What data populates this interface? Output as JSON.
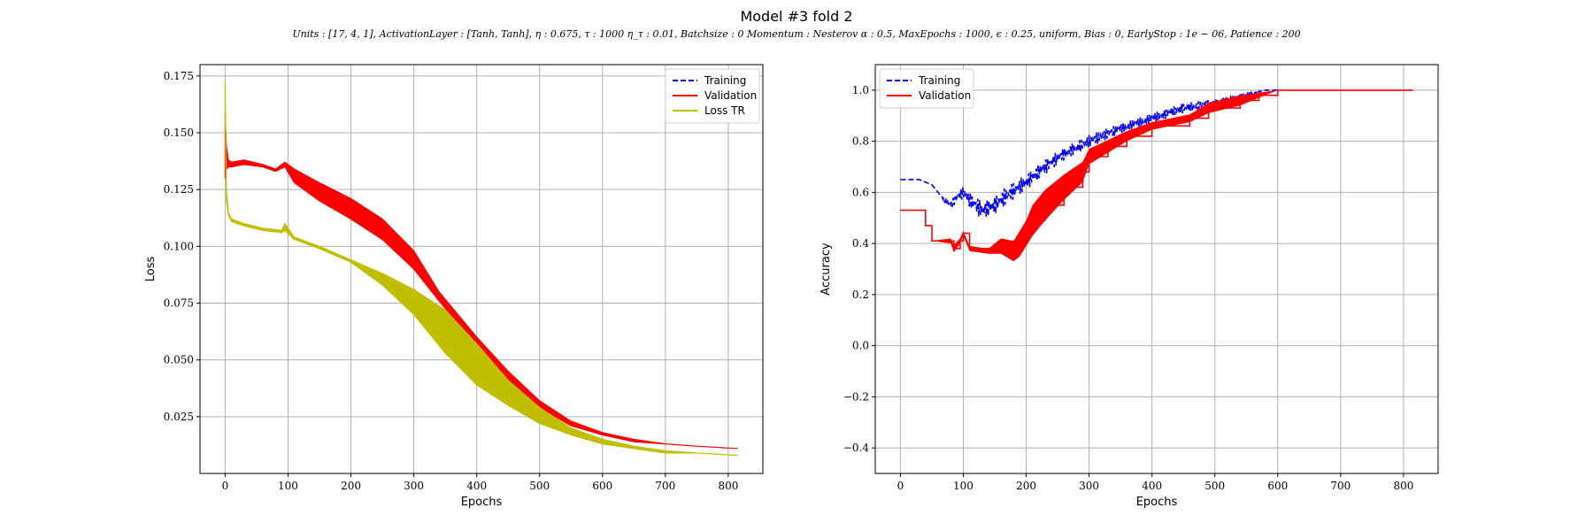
{
  "figure": {
    "title": "Model #3 fold 2",
    "subtitle": "Units : [17, 4, 1], ActivationLayer : [Tanh, Tanh], η : 0.675, τ : 1000 η_τ : 0.01, Batchsize : 0 Momentum : Nesterov α : 0.5, MaxEpochs : 1000, ϵ : 0.25, uniform, Bias : 0, EarlyStop : 1e − 06, Patience : 200"
  },
  "colors": {
    "training": "#0000ff",
    "validation": "#ff0000",
    "loss_tr": "#bfbf00",
    "grid": "#b0b0b0"
  },
  "chart_data": [
    {
      "type": "line",
      "xlabel": "Epochs",
      "ylabel": "Loss",
      "xlim": [
        -40,
        855
      ],
      "ylim": [
        -0.0,
        0.18
      ],
      "xticks": [
        0,
        100,
        200,
        300,
        400,
        500,
        600,
        700,
        800
      ],
      "yticks": [
        0.025,
        0.05,
        0.075,
        0.1,
        0.125,
        0.15,
        0.175
      ],
      "ytick_labels": [
        "0.025",
        "0.050",
        "0.075",
        "0.100",
        "0.125",
        "0.150",
        "0.175"
      ],
      "grid": true,
      "legend_position": "top-right",
      "legend": [
        {
          "label": "Training",
          "style": "dashed",
          "color": "#0000ff"
        },
        {
          "label": "Validation",
          "style": "solid",
          "color": "#ff0000"
        },
        {
          "label": "Loss TR",
          "style": "solid",
          "color": "#bfbf00"
        }
      ],
      "series": [
        {
          "name": "Validation",
          "color": "#ff0000",
          "band": true,
          "x": [
            0,
            2,
            5,
            10,
            30,
            60,
            80,
            95,
            110,
            150,
            200,
            250,
            300,
            340,
            400,
            450,
            500,
            550,
            600,
            650,
            700,
            750,
            815
          ],
          "upper": [
            0.158,
            0.144,
            0.138,
            0.137,
            0.138,
            0.136,
            0.134,
            0.137,
            0.134,
            0.128,
            0.121,
            0.112,
            0.098,
            0.08,
            0.06,
            0.045,
            0.032,
            0.023,
            0.018,
            0.015,
            0.013,
            0.012,
            0.011
          ],
          "lower": [
            0.13,
            0.134,
            0.135,
            0.135,
            0.136,
            0.135,
            0.133,
            0.135,
            0.128,
            0.12,
            0.112,
            0.103,
            0.09,
            0.076,
            0.056,
            0.04,
            0.029,
            0.021,
            0.017,
            0.014,
            0.013,
            0.012,
            0.011
          ]
        },
        {
          "name": "Loss TR",
          "color": "#bfbf00",
          "band": true,
          "x": [
            0,
            2,
            5,
            10,
            30,
            60,
            90,
            95,
            110,
            150,
            200,
            250,
            300,
            350,
            400,
            450,
            500,
            550,
            600,
            650,
            700,
            750,
            815
          ],
          "upper": [
            0.173,
            0.125,
            0.115,
            0.112,
            0.11,
            0.108,
            0.107,
            0.11,
            0.104,
            0.1,
            0.094,
            0.088,
            0.081,
            0.072,
            0.057,
            0.041,
            0.029,
            0.02,
            0.015,
            0.012,
            0.01,
            0.009,
            0.008
          ],
          "lower": [
            0.16,
            0.12,
            0.114,
            0.111,
            0.109,
            0.107,
            0.106,
            0.107,
            0.103,
            0.099,
            0.093,
            0.083,
            0.07,
            0.053,
            0.039,
            0.03,
            0.022,
            0.017,
            0.013,
            0.011,
            0.009,
            0.009,
            0.008
          ]
        }
      ]
    },
    {
      "type": "line",
      "xlabel": "Epochs",
      "ylabel": "Accuracy",
      "xlim": [
        -40,
        855
      ],
      "ylim": [
        -0.5,
        1.1
      ],
      "xticks": [
        0,
        100,
        200,
        300,
        400,
        500,
        600,
        700,
        800
      ],
      "yticks": [
        -0.4,
        -0.2,
        0.0,
        0.2,
        0.4,
        0.6,
        0.8,
        1.0
      ],
      "ytick_labels": [
        "−0.4",
        "−0.2",
        "0.0",
        "0.2",
        "0.4",
        "0.6",
        "0.8",
        "1.0"
      ],
      "grid": true,
      "legend_position": "top-left",
      "legend": [
        {
          "label": "Training",
          "style": "dashed",
          "color": "#0000ff"
        },
        {
          "label": "Validation",
          "style": "solid",
          "color": "#ff0000"
        }
      ],
      "series": [
        {
          "name": "Training",
          "color": "#0000ff",
          "style": "dashed",
          "x": [
            0,
            30,
            50,
            60,
            70,
            80,
            90,
            100,
            110,
            120,
            130,
            150,
            170,
            200,
            230,
            260,
            300,
            350,
            400,
            450,
            500,
            550,
            580,
            600
          ],
          "y": [
            0.65,
            0.65,
            0.63,
            0.6,
            0.57,
            0.55,
            0.58,
            0.6,
            0.57,
            0.55,
            0.53,
            0.55,
            0.59,
            0.64,
            0.7,
            0.75,
            0.8,
            0.85,
            0.89,
            0.93,
            0.95,
            0.98,
            1.0,
            1.0
          ],
          "jitter": [
            0,
            0,
            0,
            0,
            0.01,
            0.015,
            0.02,
            0.025,
            0.03,
            0.035,
            0.035,
            0.035,
            0.035,
            0.03,
            0.03,
            0.025,
            0.025,
            0.02,
            0.02,
            0.02,
            0.015,
            0.01,
            0,
            0
          ]
        },
        {
          "name": "Validation",
          "color": "#ff0000",
          "x": [
            0,
            35,
            40,
            50,
            80,
            85,
            95,
            100,
            110,
            140,
            160,
            180,
            190,
            200,
            210,
            230,
            260,
            290,
            300,
            330,
            360,
            400,
            460,
            490,
            540,
            570,
            600,
            700,
            815
          ],
          "y": [
            0.53,
            0.53,
            0.47,
            0.41,
            0.41,
            0.38,
            0.41,
            0.44,
            0.38,
            0.37,
            0.39,
            0.37,
            0.4,
            0.44,
            0.49,
            0.55,
            0.62,
            0.68,
            0.74,
            0.78,
            0.82,
            0.86,
            0.89,
            0.93,
            0.96,
            0.98,
            1.0,
            1.0,
            1.0
          ],
          "spread": [
            0,
            0,
            0,
            0,
            0.02,
            0.03,
            0.02,
            0.02,
            0.02,
            0.02,
            0.06,
            0.08,
            0.1,
            0.1,
            0.12,
            0.12,
            0.1,
            0.08,
            0.06,
            0.05,
            0.04,
            0.03,
            0.03,
            0.04,
            0.04,
            0.02,
            0,
            0,
            0
          ]
        }
      ]
    }
  ]
}
